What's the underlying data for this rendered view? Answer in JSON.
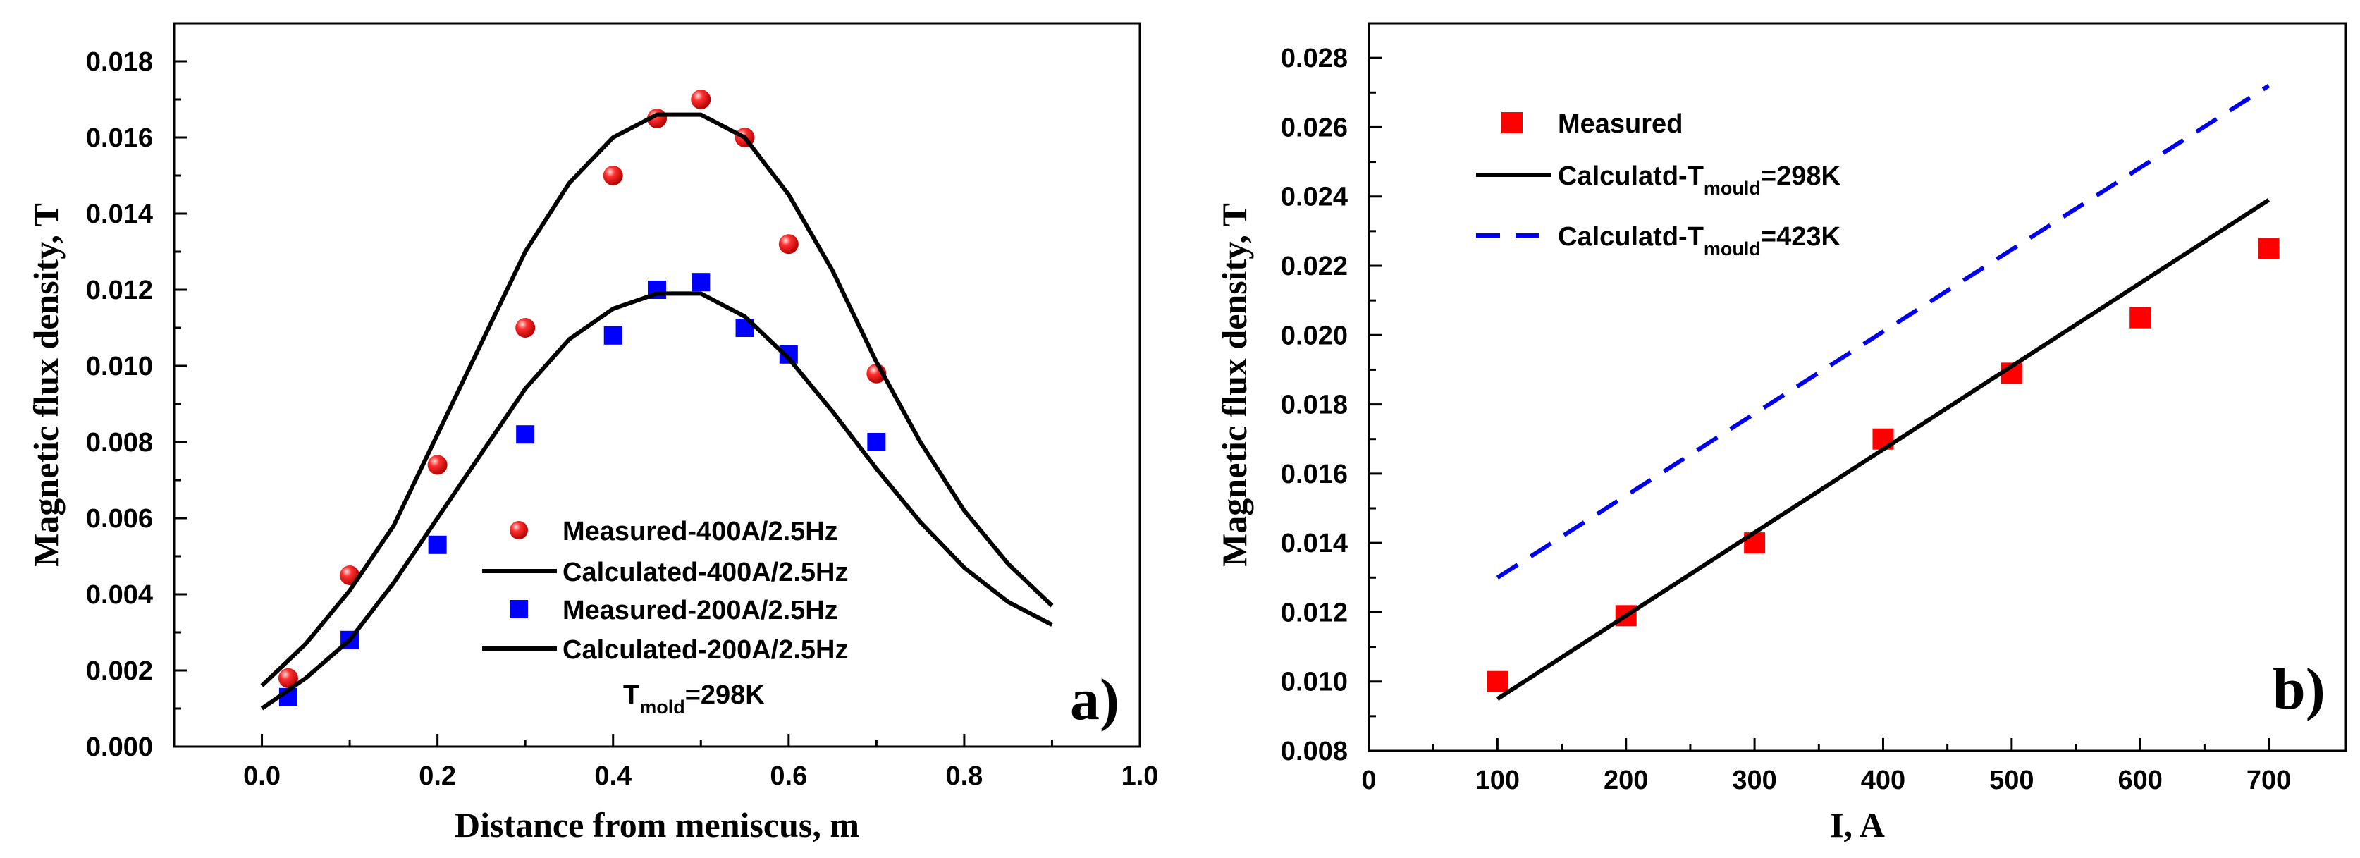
{
  "chart_data": [
    {
      "panel_label": "a)",
      "type": "line+scatter",
      "xlabel": "Distance from meniscus, m",
      "ylabel": "Magnetic flux density, T",
      "xlim": [
        -0.1,
        1.0
      ],
      "ylim": [
        0.0,
        0.019
      ],
      "xticks": [
        0.0,
        0.2,
        0.4,
        0.6,
        0.8,
        1.0
      ],
      "xtick_labels": [
        "0.0",
        "0.2",
        "0.4",
        "0.6",
        "0.8",
        "1.0"
      ],
      "yticks": [
        0.0,
        0.002,
        0.004,
        0.006,
        0.008,
        0.01,
        0.012,
        0.014,
        0.016,
        0.018
      ],
      "ytick_labels": [
        "0.000",
        "0.002",
        "0.004",
        "0.006",
        "0.008",
        "0.010",
        "0.012",
        "0.014",
        "0.016",
        "0.018"
      ],
      "annotation": {
        "main": "T",
        "sub": "mold",
        "tail": "=298K"
      },
      "series": [
        {
          "name": "Measured-400A/2.5Hz",
          "style": "sphere",
          "color": "#e00000",
          "x": [
            0.03,
            0.1,
            0.2,
            0.3,
            0.4,
            0.45,
            0.5,
            0.55,
            0.6,
            0.7
          ],
          "y": [
            0.0018,
            0.0045,
            0.0074,
            0.011,
            0.015,
            0.0165,
            0.017,
            0.016,
            0.0132,
            0.0098
          ]
        },
        {
          "name": "Calculated-400A/2.5Hz",
          "style": "solid",
          "color": "#000000",
          "x": [
            0.0,
            0.05,
            0.1,
            0.15,
            0.2,
            0.25,
            0.3,
            0.35,
            0.4,
            0.45,
            0.5,
            0.55,
            0.6,
            0.65,
            0.7,
            0.75,
            0.8,
            0.85,
            0.9
          ],
          "y": [
            0.0016,
            0.0027,
            0.0041,
            0.0058,
            0.0082,
            0.0106,
            0.013,
            0.0148,
            0.016,
            0.0166,
            0.0166,
            0.016,
            0.0145,
            0.0125,
            0.0101,
            0.008,
            0.0062,
            0.0048,
            0.0037
          ]
        },
        {
          "name": "Measured-200A/2.5Hz",
          "style": "square",
          "color": "#0000ff",
          "x": [
            0.03,
            0.1,
            0.2,
            0.3,
            0.4,
            0.45,
            0.5,
            0.55,
            0.6,
            0.7
          ],
          "y": [
            0.0013,
            0.0028,
            0.0053,
            0.0082,
            0.0108,
            0.012,
            0.0122,
            0.011,
            0.0103,
            0.008
          ]
        },
        {
          "name": "Calculated-200A/2.5Hz",
          "style": "solid",
          "color": "#000000",
          "x": [
            0.0,
            0.05,
            0.1,
            0.15,
            0.2,
            0.25,
            0.3,
            0.35,
            0.4,
            0.45,
            0.5,
            0.55,
            0.6,
            0.65,
            0.7,
            0.75,
            0.8,
            0.85,
            0.9
          ],
          "y": [
            0.001,
            0.0018,
            0.0028,
            0.0043,
            0.006,
            0.0077,
            0.0094,
            0.0107,
            0.0115,
            0.0119,
            0.0119,
            0.0113,
            0.0102,
            0.0088,
            0.0073,
            0.0059,
            0.0047,
            0.0038,
            0.0032
          ]
        }
      ]
    },
    {
      "panel_label": "b)",
      "type": "line+scatter",
      "xlabel": "I, A",
      "ylabel": "Magnetic flux density, T",
      "xlim": [
        0,
        760
      ],
      "ylim": [
        0.008,
        0.029
      ],
      "xticks": [
        0,
        100,
        200,
        300,
        400,
        500,
        600,
        700
      ],
      "xtick_labels": [
        "0",
        "100",
        "200",
        "300",
        "400",
        "500",
        "600",
        "700"
      ],
      "yticks": [
        0.008,
        0.01,
        0.012,
        0.014,
        0.016,
        0.018,
        0.02,
        0.022,
        0.024,
        0.026,
        0.028
      ],
      "ytick_labels": [
        "0.008",
        "0.010",
        "0.012",
        "0.014",
        "0.016",
        "0.018",
        "0.020",
        "0.022",
        "0.024",
        "0.026",
        "0.028"
      ],
      "series": [
        {
          "name": "Measured",
          "style": "square",
          "color": "#ff0000",
          "x": [
            100,
            200,
            300,
            400,
            500,
            600,
            700
          ],
          "y": [
            0.01,
            0.0119,
            0.014,
            0.017,
            0.0189,
            0.0205,
            0.0225
          ]
        },
        {
          "name": "Calculatd-T",
          "sub": "mould",
          "tail": "=298K",
          "style": "solid",
          "color": "#000000",
          "x": [
            100,
            700
          ],
          "y": [
            0.0095,
            0.0239
          ]
        },
        {
          "name": "Calculatd-T",
          "sub": "mould",
          "tail": "=423K",
          "style": "dashed",
          "color": "#0000ee",
          "x": [
            100,
            700
          ],
          "y": [
            0.013,
            0.0272
          ]
        }
      ]
    }
  ]
}
